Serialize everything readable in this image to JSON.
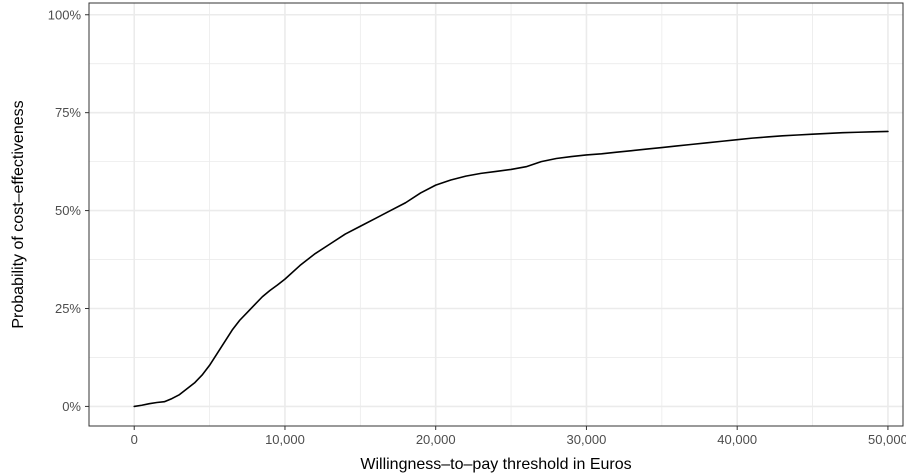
{
  "chart_data": {
    "type": "line",
    "title": "",
    "xlabel": "Willingness–to–pay threshold in Euros",
    "ylabel": "Probability of cost–effectiveness",
    "xlim": [
      -3000,
      51000
    ],
    "ylim": [
      -0.05,
      1.03
    ],
    "x_ticks": [
      0,
      10000,
      20000,
      30000,
      40000,
      50000
    ],
    "x_tick_labels": [
      "0",
      "10,000",
      "20,000",
      "30,000",
      "40,000",
      "50,000"
    ],
    "y_ticks": [
      0,
      0.25,
      0.5,
      0.75,
      1.0
    ],
    "y_tick_labels": [
      "0%",
      "25%",
      "50%",
      "75%",
      "100%"
    ],
    "grid": true,
    "legend": "none",
    "colors": {
      "line": "#000000",
      "grid": "#ebebeb",
      "border": "#333333",
      "background": "#ffffff"
    },
    "series": [
      {
        "x": [
          0,
          500,
          1000,
          1500,
          2000,
          2500,
          3000,
          3500,
          4000,
          4500,
          5000,
          5500,
          6000,
          6500,
          7000,
          7500,
          8000,
          8500,
          9000,
          9500,
          10000,
          11000,
          12000,
          13000,
          14000,
          15000,
          16000,
          17000,
          18000,
          19000,
          20000,
          21000,
          22000,
          23000,
          24000,
          25000,
          26000,
          27000,
          28000,
          29000,
          30000,
          31000,
          32000,
          33000,
          34000,
          35000,
          36000,
          37000,
          38000,
          39000,
          40000,
          41000,
          42000,
          43000,
          44000,
          45000,
          46000,
          47000,
          48000,
          49000,
          50000
        ],
        "values": [
          0.0,
          0.003,
          0.007,
          0.01,
          0.012,
          0.02,
          0.03,
          0.045,
          0.06,
          0.08,
          0.105,
          0.135,
          0.165,
          0.195,
          0.22,
          0.24,
          0.26,
          0.28,
          0.296,
          0.31,
          0.325,
          0.36,
          0.39,
          0.415,
          0.44,
          0.46,
          0.48,
          0.5,
          0.52,
          0.545,
          0.565,
          0.578,
          0.588,
          0.595,
          0.6,
          0.605,
          0.612,
          0.625,
          0.633,
          0.638,
          0.642,
          0.645,
          0.649,
          0.653,
          0.657,
          0.661,
          0.665,
          0.669,
          0.673,
          0.677,
          0.681,
          0.685,
          0.688,
          0.691,
          0.693,
          0.695,
          0.697,
          0.699,
          0.7,
          0.701,
          0.702
        ]
      }
    ]
  }
}
